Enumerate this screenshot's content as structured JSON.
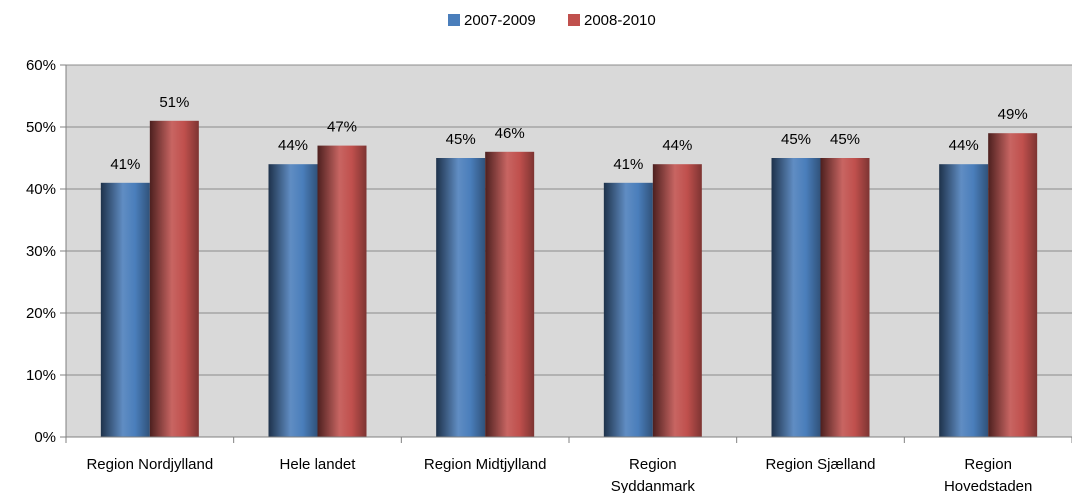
{
  "chart_data": {
    "type": "bar",
    "categories": [
      [
        "Region Nordjylland"
      ],
      [
        "Hele landet"
      ],
      [
        "Region Midtjylland"
      ],
      [
        "Region",
        "Syddanmark"
      ],
      [
        "Region Sjælland"
      ],
      [
        "Region",
        "Hovedstaden"
      ]
    ],
    "series": [
      {
        "name": "2007-2009",
        "values": [
          41,
          44,
          45,
          41,
          45,
          44
        ],
        "labels": [
          "41%",
          "44%",
          "45%",
          "41%",
          "45%",
          "44%"
        ],
        "color": "#4a7ebb"
      },
      {
        "name": "2008-2010",
        "values": [
          51,
          47,
          46,
          44,
          45,
          49
        ],
        "labels": [
          "51%",
          "47%",
          "46%",
          "44%",
          "45%",
          "49%"
        ],
        "color": "#c0504d"
      }
    ],
    "ylim": [
      0,
      60
    ],
    "yticks": [
      0,
      10,
      20,
      30,
      40,
      50,
      60
    ],
    "ytick_labels": [
      "0%",
      "10%",
      "20%",
      "30%",
      "40%",
      "50%",
      "60%"
    ],
    "grid": true,
    "legend": "top-center",
    "plot_background": "#d9d9d9"
  }
}
